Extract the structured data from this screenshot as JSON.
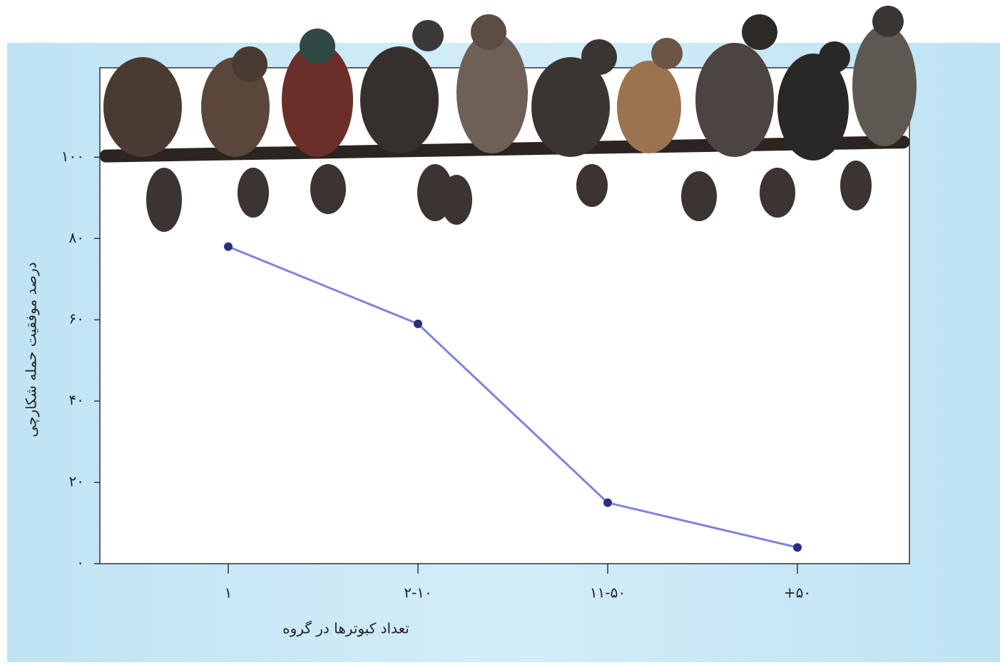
{
  "chart_data": {
    "type": "line",
    "x_label": "تعداد کبوترها در گروه",
    "y_label": "درصد موفقیت حمله شکارچی",
    "categories": [
      "۱",
      "۲-۱۰",
      "۱۱-۵۰",
      "+۵۰"
    ],
    "series": [
      {
        "color": "#7f84d8",
        "values": [
          78,
          59,
          15,
          4
        ]
      }
    ],
    "ylim": [
      0,
      122
    ],
    "yticks": [
      {
        "value": 0,
        "label": "۰"
      },
      {
        "value": 20,
        "label": "۲۰"
      },
      {
        "value": 40,
        "label": "۴۰"
      },
      {
        "value": 60,
        "label": "۶۰"
      },
      {
        "value": 80,
        "label": "۸۰"
      },
      {
        "value": 100,
        "label": "۱۰۰"
      }
    ]
  }
}
